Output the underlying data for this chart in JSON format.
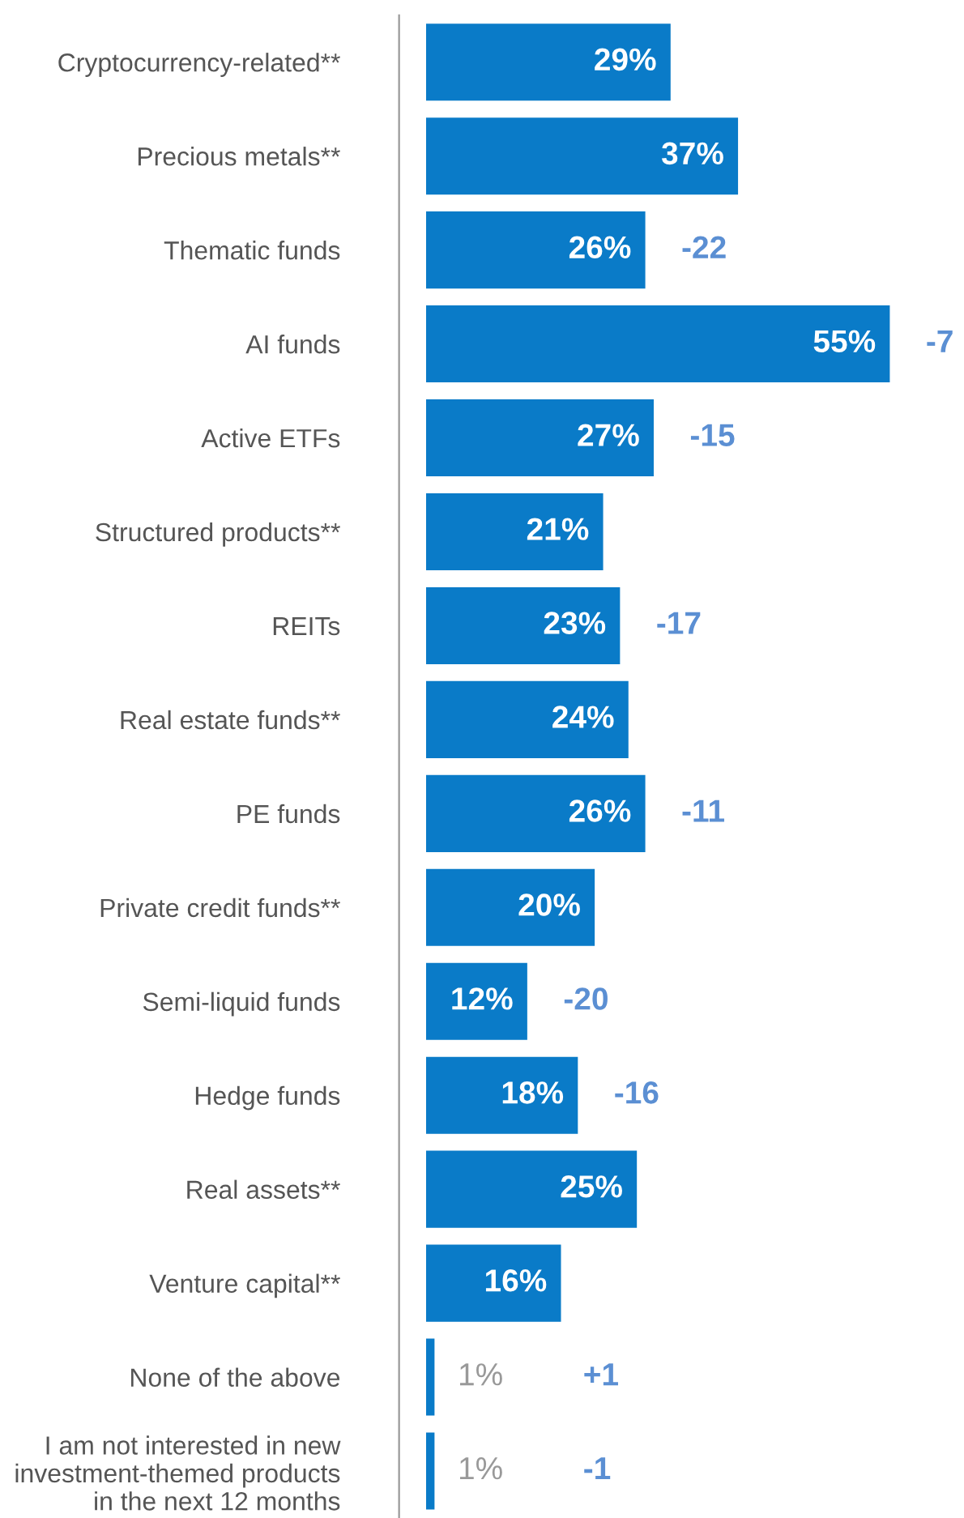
{
  "chart_data": {
    "type": "bar",
    "orientation": "horizontal",
    "categories": [
      "Cryptocurrency-related**",
      "Precious metals**",
      "Thematic funds",
      "AI funds",
      "Active ETFs",
      "Structured products**",
      "REITs",
      "Real estate funds**",
      "PE funds",
      "Private credit funds**",
      "Semi-liquid funds",
      "Hedge funds",
      "Real assets**",
      "Venture capital**",
      "None of the above",
      "I am not interested in new\ninvestment-themed products\nin the next 12 months"
    ],
    "values": [
      29,
      37,
      26,
      55,
      27,
      21,
      23,
      24,
      26,
      20,
      12,
      18,
      25,
      16,
      1,
      1
    ],
    "color": "#0a7bc8",
    "data_labels": true,
    "value_labels": [
      "29%",
      "37%",
      "26%",
      "55%",
      "27%",
      "21%",
      "23%",
      "24%",
      "26%",
      "20%",
      "12%",
      "18%",
      "25%",
      "16%",
      "1%",
      "1%"
    ],
    "annotations": [
      {
        "text": "-22",
        "x": 26,
        "y": "Thematic funds"
      },
      {
        "text": "-7",
        "x": 55,
        "y": "AI funds"
      },
      {
        "text": "-15",
        "x": 27,
        "y": "Active ETFs"
      },
      {
        "text": "-17",
        "x": 23,
        "y": "REITs"
      },
      {
        "text": "-11",
        "x": 26,
        "y": "PE funds"
      },
      {
        "text": "-20",
        "x": 12,
        "y": "Semi-liquid funds"
      },
      {
        "text": "-16",
        "x": 18,
        "y": "Hedge funds"
      },
      "+1",
      "-1"
    ],
    "grid": false,
    "legend": false,
    "tick_labels": "y"
  }
}
